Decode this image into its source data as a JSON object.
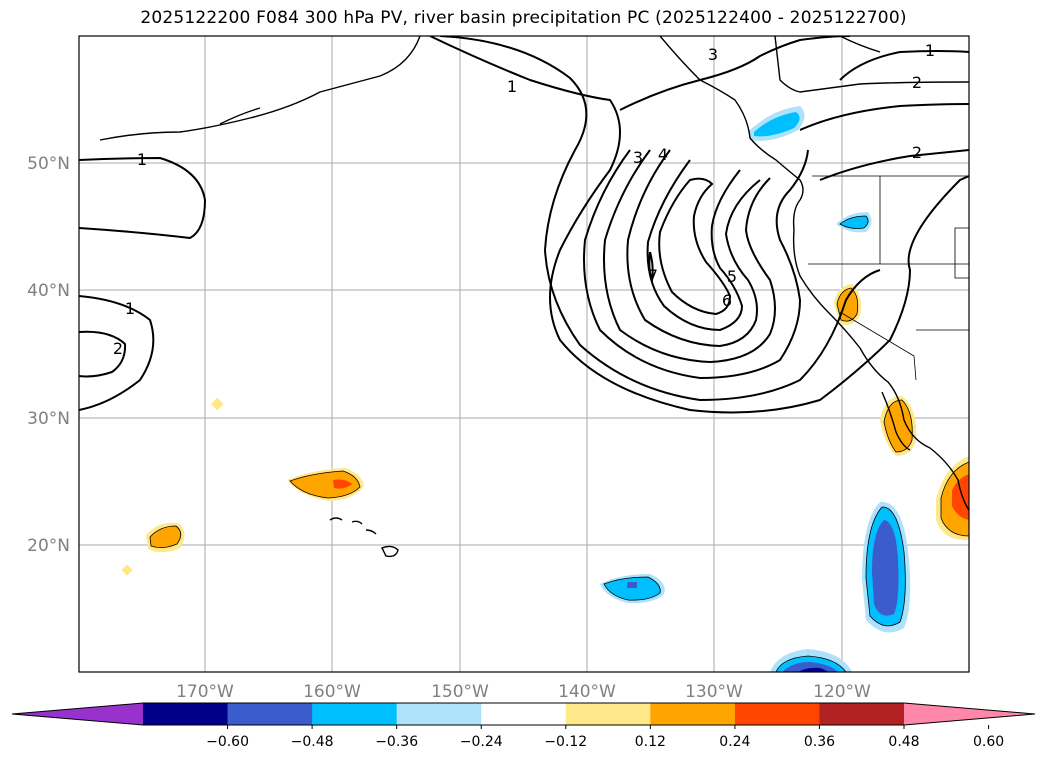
{
  "title": "2025122200 F084 300 hPa PV, river basin precipitation PC (2025122400 - 2025122700)",
  "lat_labels": [
    "50°N",
    "40°N",
    "30°N",
    "20°N"
  ],
  "lon_labels": [
    "170°W",
    "160°W",
    "150°W",
    "140°W",
    "130°W",
    "120°W"
  ],
  "pv_contour_labels": [
    "1",
    "1",
    "1",
    "1",
    "2",
    "2",
    "2",
    "3",
    "3",
    "4",
    "5",
    "6",
    "7"
  ],
  "colorbar": {
    "ticks": [
      "−0.60",
      "−0.48",
      "−0.36",
      "−0.24",
      "−0.12",
      "0.12",
      "0.24",
      "0.36",
      "0.48",
      "0.60"
    ],
    "colors": [
      "#9932CC",
      "#00008B",
      "#3A5CCC",
      "#00BFFF",
      "#ADE2FA",
      "#FFFFFF",
      "#FFE88A",
      "#FFA500",
      "#FF4500",
      "#B22222",
      "#FF88AA"
    ]
  }
}
